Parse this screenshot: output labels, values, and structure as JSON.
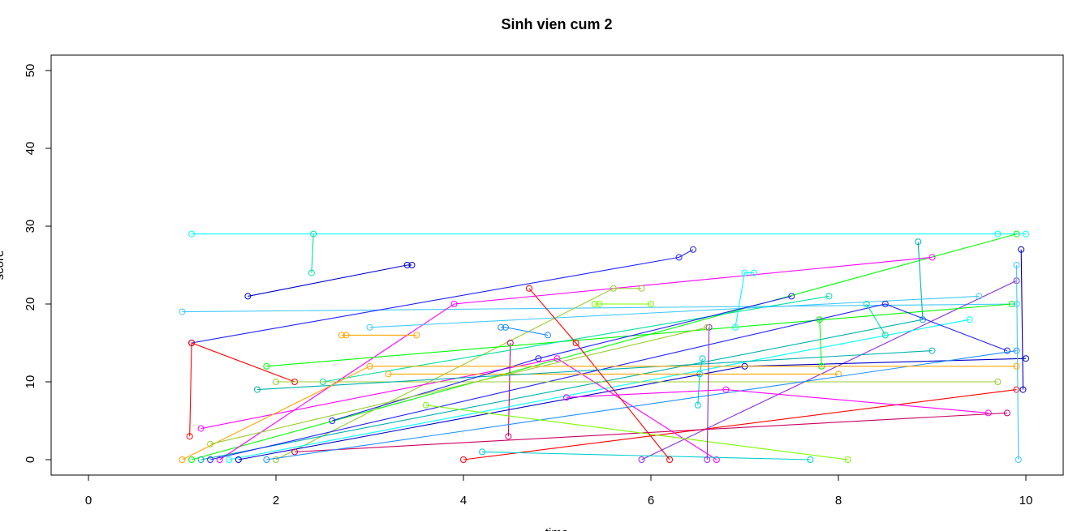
{
  "chart_data": {
    "type": "line",
    "title": "Sinh vien cum 2",
    "xlabel": "time",
    "ylabel": "score",
    "xlim": [
      0,
      10
    ],
    "ylim": [
      0,
      50
    ],
    "x_ticks": [
      "0",
      "2",
      "4",
      "6",
      "8",
      "10"
    ],
    "y_ticks": [
      "0",
      "10",
      "20",
      "30",
      "40",
      "50"
    ],
    "grid": false,
    "legend": "none",
    "colors": [
      "#00FFFF",
      "#00FF00",
      "#00E0A0",
      "#40C8FF",
      "#0000CC",
      "#2020FF",
      "#FF0000",
      "#FF00FF",
      "#FFA500",
      "#9ACD32",
      "#00B0B0",
      "#CC0066",
      "#1E90FF",
      "#7CFC00",
      "#00CED1",
      "#8A2BE2"
    ],
    "series": [
      {
        "x": [
          1.1,
          9.7,
          10.0
        ],
        "y": [
          29,
          29,
          29
        ]
      },
      {
        "x": [
          1.1,
          9.9
        ],
        "y": [
          0,
          29
        ]
      },
      {
        "x": [
          2.4,
          2.38
        ],
        "y": [
          29,
          24
        ]
      },
      {
        "x": [
          1.0,
          9.9
        ],
        "y": [
          19,
          20
        ]
      },
      {
        "x": [
          1.7,
          3.4,
          3.45
        ],
        "y": [
          21,
          25,
          25
        ]
      },
      {
        "x": [
          1.1,
          6.3,
          6.45
        ],
        "y": [
          15,
          26,
          27
        ]
      },
      {
        "x": [
          1.08,
          1.1,
          2.2
        ],
        "y": [
          3,
          15,
          10
        ]
      },
      {
        "x": [
          1.4,
          3.9,
          9.0
        ],
        "y": [
          0,
          20,
          26
        ]
      },
      {
        "x": [
          2.7,
          2.75,
          3.5
        ],
        "y": [
          16,
          16,
          16
        ]
      },
      {
        "x": [
          2.0,
          5.6,
          5.9
        ],
        "y": [
          0,
          22,
          22
        ]
      },
      {
        "x": [
          1.2,
          8.9,
          8.85
        ],
        "y": [
          0,
          18,
          28
        ]
      },
      {
        "x": [
          4.5,
          4.48
        ],
        "y": [
          15,
          3
        ]
      },
      {
        "x": [
          4.4,
          4.45,
          4.9
        ],
        "y": [
          17,
          17,
          16
        ]
      },
      {
        "x": [
          5.4,
          5.45,
          6.0
        ],
        "y": [
          20,
          20,
          20
        ]
      },
      {
        "x": [
          6.5,
          6.52,
          6.55
        ],
        "y": [
          7,
          11,
          13
        ]
      },
      {
        "x": [
          5.9,
          9.9
        ],
        "y": [
          0,
          23
        ]
      },
      {
        "x": [
          1.5,
          9.4
        ],
        "y": [
          0,
          18
        ]
      },
      {
        "x": [
          1.9,
          9.85
        ],
        "y": [
          12,
          20
        ]
      },
      {
        "x": [
          2.5,
          7.9
        ],
        "y": [
          10,
          21
        ]
      },
      {
        "x": [
          3.0,
          9.5
        ],
        "y": [
          17,
          21
        ]
      },
      {
        "x": [
          1.6,
          7.0,
          10.0
        ],
        "y": [
          0,
          12,
          13
        ]
      },
      {
        "x": [
          1.3,
          8.5,
          9.8
        ],
        "y": [
          0,
          20,
          14
        ]
      },
      {
        "x": [
          4.0,
          9.9
        ],
        "y": [
          0,
          9
        ]
      },
      {
        "x": [
          1.2,
          5.0,
          6.7
        ],
        "y": [
          4,
          13,
          0
        ]
      },
      {
        "x": [
          3.2,
          8.0
        ],
        "y": [
          11,
          11
        ]
      },
      {
        "x": [
          2.0,
          9.7
        ],
        "y": [
          10,
          10
        ]
      },
      {
        "x": [
          1.8,
          9.0
        ],
        "y": [
          9,
          14
        ]
      },
      {
        "x": [
          2.2,
          9.8
        ],
        "y": [
          1,
          6
        ]
      },
      {
        "x": [
          1.9,
          9.9
        ],
        "y": [
          0,
          14
        ]
      },
      {
        "x": [
          3.6,
          8.1
        ],
        "y": [
          7,
          0
        ]
      },
      {
        "x": [
          4.2,
          7.7
        ],
        "y": [
          1,
          0
        ]
      },
      {
        "x": [
          6.6,
          6.62
        ],
        "y": [
          0,
          17
        ]
      },
      {
        "x": [
          6.9,
          7.0,
          7.1
        ],
        "y": [
          17,
          24,
          24
        ]
      },
      {
        "x": [
          7.8,
          7.82
        ],
        "y": [
          18,
          12
        ]
      },
      {
        "x": [
          8.3,
          8.5
        ],
        "y": [
          20,
          16
        ]
      },
      {
        "x": [
          9.9,
          9.92
        ],
        "y": [
          25,
          0
        ]
      },
      {
        "x": [
          9.95,
          9.97
        ],
        "y": [
          27,
          9
        ]
      },
      {
        "x": [
          2.6,
          4.8,
          7.5
        ],
        "y": [
          5,
          13,
          21
        ]
      },
      {
        "x": [
          4.7,
          5.2,
          6.2
        ],
        "y": [
          22,
          15,
          0
        ]
      },
      {
        "x": [
          5.1,
          6.8,
          9.6
        ],
        "y": [
          8,
          9,
          6
        ]
      },
      {
        "x": [
          1.0,
          3.0,
          9.9
        ],
        "y": [
          0,
          12,
          12
        ]
      },
      {
        "x": [
          1.3,
          6.6
        ],
        "y": [
          2,
          17
        ]
      }
    ]
  }
}
